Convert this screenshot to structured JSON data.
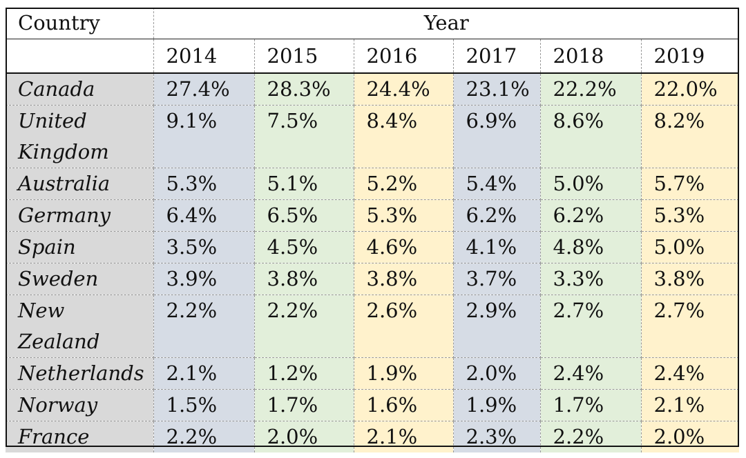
{
  "table": {
    "country_header": "Country",
    "year_header": "Year",
    "years": [
      "2014",
      "2015",
      "2016",
      "2017",
      "2018",
      "2019"
    ],
    "rows": [
      {
        "country": "Canada",
        "values": [
          "27.4%",
          "28.3%",
          "24.4%",
          "23.1%",
          "22.2%",
          "22.0%"
        ]
      },
      {
        "country": "United Kingdom",
        "values": [
          "9.1%",
          "7.5%",
          "8.4%",
          "6.9%",
          "8.6%",
          "8.2%"
        ]
      },
      {
        "country": "Australia",
        "values": [
          "5.3%",
          "5.1%",
          "5.2%",
          "5.4%",
          "5.0%",
          "5.7%"
        ]
      },
      {
        "country": "Germany",
        "values": [
          "6.4%",
          "6.5%",
          "5.3%",
          "6.2%",
          "6.2%",
          "5.3%"
        ]
      },
      {
        "country": "Spain",
        "values": [
          "3.5%",
          "4.5%",
          "4.6%",
          "4.1%",
          "4.8%",
          "5.0%"
        ]
      },
      {
        "country": "Sweden",
        "values": [
          "3.9%",
          "3.8%",
          "3.8%",
          "3.7%",
          "3.3%",
          "3.8%"
        ]
      },
      {
        "country": "New Zealand",
        "values": [
          "2.2%",
          "2.2%",
          "2.6%",
          "2.9%",
          "2.7%",
          "2.7%"
        ]
      },
      {
        "country": "Netherlands",
        "values": [
          "2.1%",
          "1.2%",
          "1.9%",
          "2.0%",
          "2.4%",
          "2.4%"
        ]
      },
      {
        "country": "Norway",
        "values": [
          "1.5%",
          "1.7%",
          "1.6%",
          "1.9%",
          "1.7%",
          "2.1%"
        ]
      },
      {
        "country": "France",
        "values": [
          "2.2%",
          "2.0%",
          "2.1%",
          "2.3%",
          "2.2%",
          "2.0%"
        ]
      }
    ],
    "column_colors": [
      "#d6dce5",
      "#e2efda",
      "#fff2cc",
      "#d6dce5",
      "#e2efda",
      "#fff2cc"
    ],
    "name_color": "#d9d9d9"
  }
}
